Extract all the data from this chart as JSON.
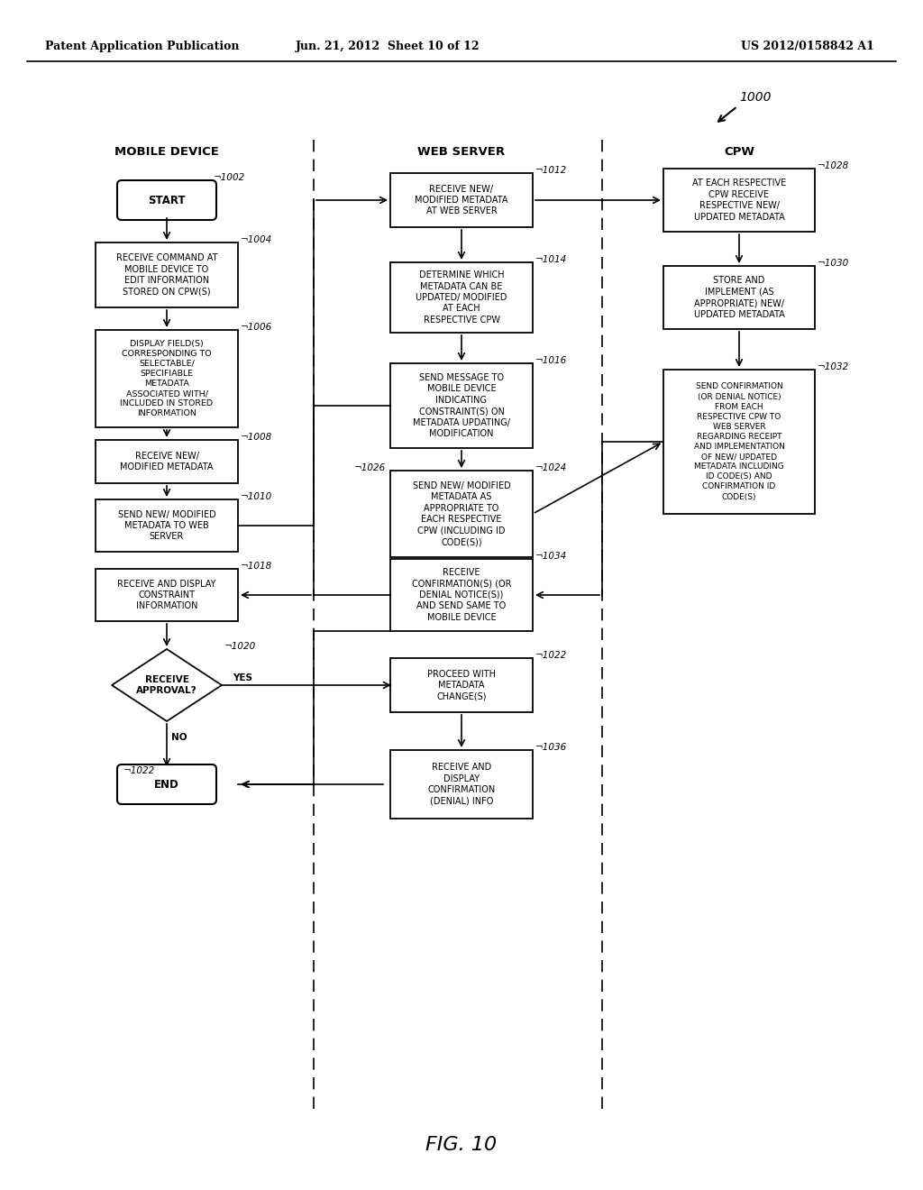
{
  "title_left": "Patent Application Publication",
  "title_mid": "Jun. 21, 2012  Sheet 10 of 12",
  "title_right": "US 2012/0158842 A1",
  "fig_label": "FIG. 10",
  "bg_color": "#ffffff"
}
